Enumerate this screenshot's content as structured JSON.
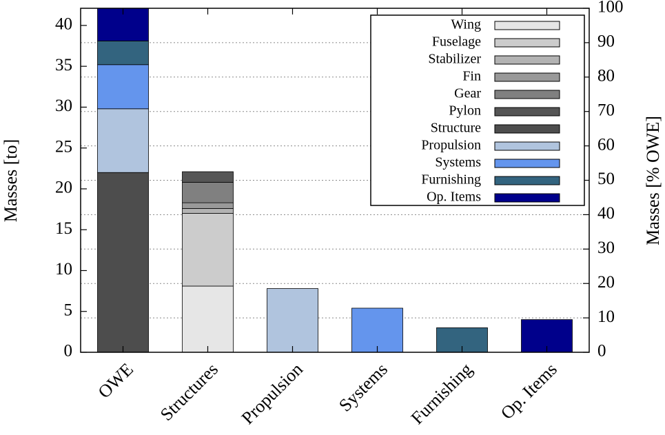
{
  "chart_data": {
    "type": "stacked-bar",
    "categories": [
      "OWE",
      "Structures",
      "Propulsion",
      "Systems",
      "Furnishing",
      "Op. Items"
    ],
    "series": [
      {
        "name": "Wing",
        "color": "#e6e6e6",
        "values": [
          null,
          8.1,
          null,
          null,
          null,
          null
        ]
      },
      {
        "name": "Fuselage",
        "color": "#cccccc",
        "values": [
          null,
          8.9,
          null,
          null,
          null,
          null
        ]
      },
      {
        "name": "Stabilizer",
        "color": "#b3b3b3",
        "values": [
          null,
          0.6,
          null,
          null,
          null,
          null
        ]
      },
      {
        "name": "Fin",
        "color": "#999999",
        "values": [
          null,
          0.7,
          null,
          null,
          null,
          null
        ]
      },
      {
        "name": "Gear",
        "color": "#808080",
        "values": [
          null,
          2.5,
          null,
          null,
          null,
          null
        ]
      },
      {
        "name": "Pylon",
        "color": "#555555",
        "values": [
          null,
          1.3,
          null,
          null,
          null,
          null
        ]
      },
      {
        "name": "Structure",
        "color": "#4d4d4d",
        "values": [
          22.0,
          null,
          null,
          null,
          null,
          null
        ]
      },
      {
        "name": "Propulsion",
        "color": "#b0c4de",
        "values": [
          7.8,
          null,
          7.8,
          null,
          null,
          null
        ]
      },
      {
        "name": "Systems",
        "color": "#6495ed",
        "values": [
          5.4,
          null,
          null,
          5.4,
          null,
          null
        ]
      },
      {
        "name": "Furnishing",
        "color": "#33647f",
        "values": [
          2.9,
          null,
          null,
          null,
          3.0,
          null
        ]
      },
      {
        "name": "Op. Items",
        "color": "#00008b",
        "values": [
          4.0,
          null,
          null,
          null,
          null,
          4.0
        ]
      }
    ],
    "ylabel": "Masses [to]",
    "y2label": "Masses [% OWE]",
    "ylim": [
      0,
      42.1
    ],
    "yticks": [
      0,
      5,
      10,
      15,
      20,
      25,
      30,
      35,
      40
    ],
    "y2lim": [
      0,
      100
    ],
    "y2ticks": [
      0,
      10,
      20,
      30,
      40,
      50,
      60,
      70,
      80,
      90,
      100
    ],
    "grid": true,
    "legend": "upper right"
  }
}
